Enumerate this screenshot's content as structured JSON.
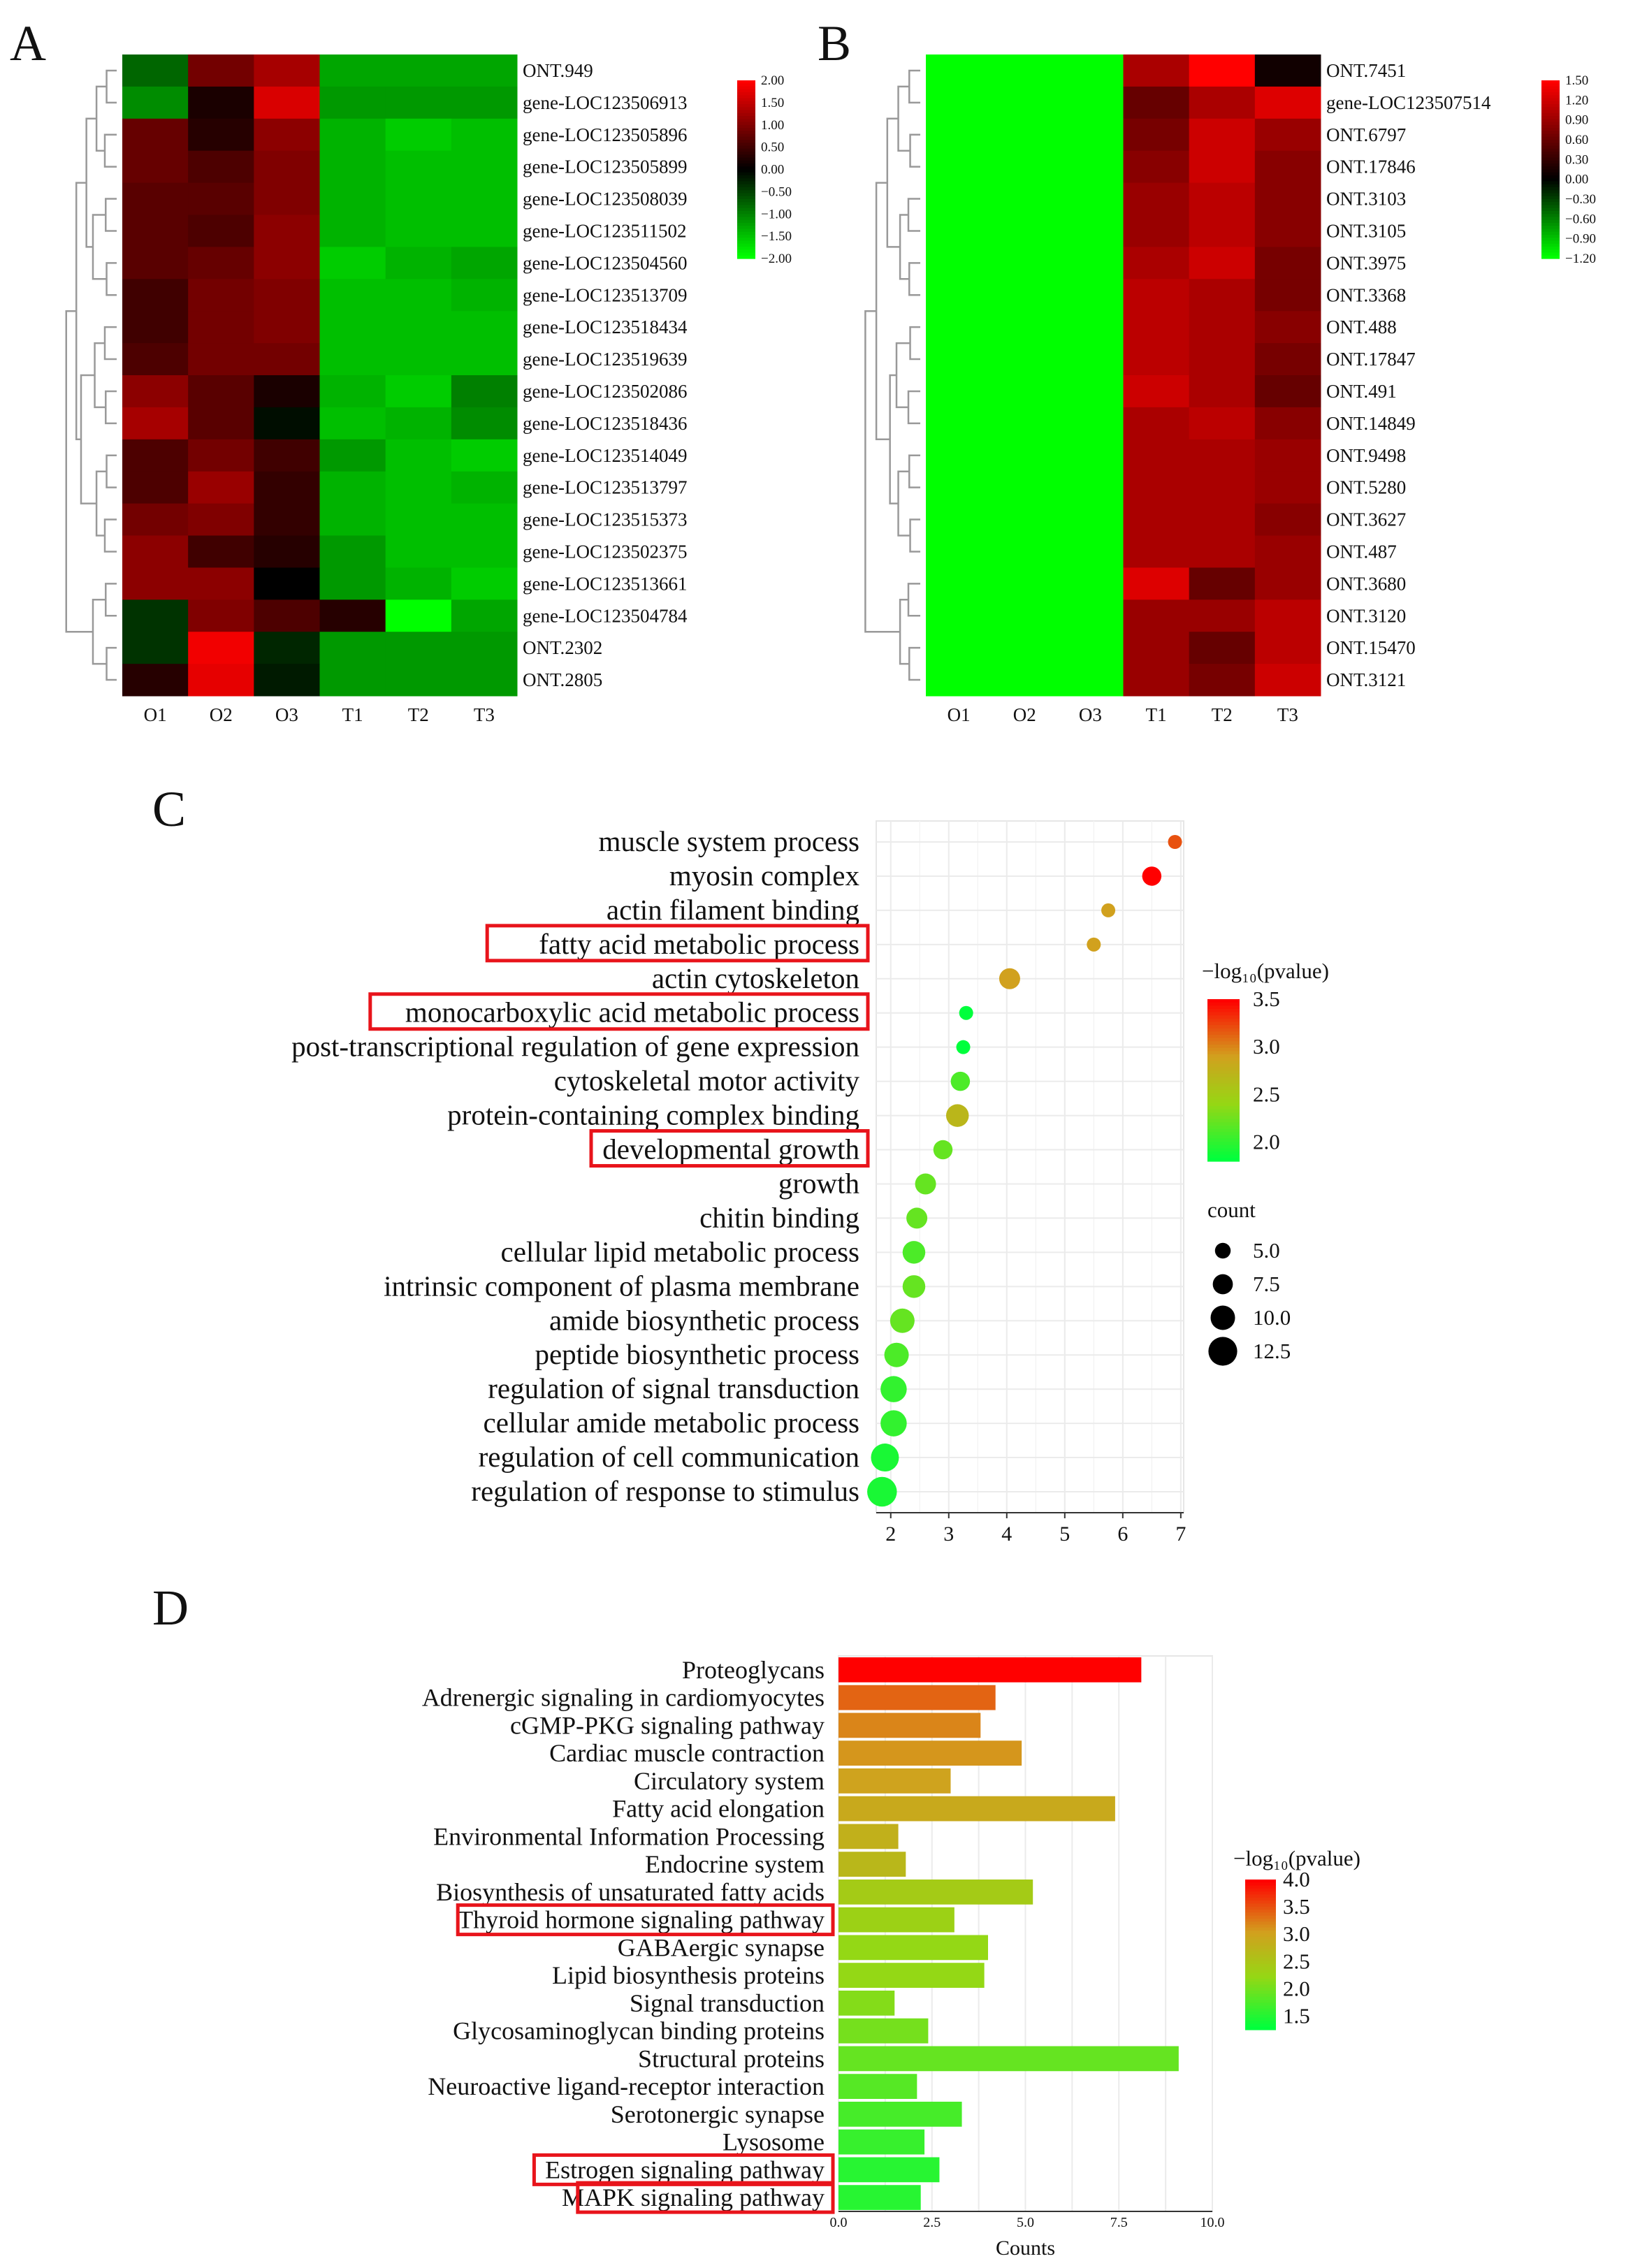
{
  "panel_labels": {
    "A": "A",
    "B": "B",
    "C": "C",
    "D": "D"
  },
  "chart_data": [
    {
      "panel": "A",
      "type": "heatmap",
      "columns": [
        "O1",
        "O2",
        "O3",
        "T1",
        "T2",
        "T3"
      ],
      "rows": [
        "ONT.949",
        "gene-LOC123506913",
        "gene-LOC123505896",
        "gene-LOC123505899",
        "gene-LOC123508039",
        "gene-LOC123511502",
        "gene-LOC123504560",
        "gene-LOC123513709",
        "gene-LOC123518434",
        "gene-LOC123519639",
        "gene-LOC123502086",
        "gene-LOC123518436",
        "gene-LOC123514049",
        "gene-LOC123513797",
        "gene-LOC123515373",
        "gene-LOC123502375",
        "gene-LOC123513661",
        "gene-LOC123504784",
        "ONT.2302",
        "ONT.2805"
      ],
      "values": [
        [
          -0.8,
          0.9,
          1.3,
          -1.3,
          -1.3,
          -1.3
        ],
        [
          -1.1,
          0.2,
          1.7,
          -1.2,
          -1.2,
          -1.2
        ],
        [
          0.8,
          0.3,
          1.1,
          -1.4,
          -1.6,
          -1.5
        ],
        [
          0.8,
          0.6,
          1.0,
          -1.4,
          -1.5,
          -1.5
        ],
        [
          0.7,
          0.7,
          1.0,
          -1.4,
          -1.5,
          -1.5
        ],
        [
          0.7,
          0.6,
          1.1,
          -1.4,
          -1.5,
          -1.5
        ],
        [
          0.7,
          0.8,
          1.1,
          -1.6,
          -1.4,
          -1.3
        ],
        [
          0.5,
          0.9,
          1.0,
          -1.5,
          -1.5,
          -1.4
        ],
        [
          0.5,
          0.9,
          1.0,
          -1.5,
          -1.5,
          -1.5
        ],
        [
          0.6,
          0.9,
          0.9,
          -1.5,
          -1.5,
          -1.5
        ],
        [
          1.1,
          0.7,
          0.2,
          -1.4,
          -1.6,
          -1.0
        ],
        [
          1.3,
          0.7,
          -0.1,
          -1.5,
          -1.4,
          -1.1
        ],
        [
          0.6,
          0.9,
          0.5,
          -1.2,
          -1.5,
          -1.6
        ],
        [
          0.6,
          1.2,
          0.4,
          -1.4,
          -1.5,
          -1.4
        ],
        [
          0.9,
          1.0,
          0.4,
          -1.4,
          -1.5,
          -1.5
        ],
        [
          1.1,
          0.5,
          0.3,
          -1.2,
          -1.5,
          -1.5
        ],
        [
          1.1,
          1.1,
          0.0,
          -1.2,
          -1.4,
          -1.6
        ],
        [
          -0.4,
          1.0,
          0.6,
          0.3,
          -2.0,
          -1.3
        ],
        [
          -0.4,
          1.9,
          -0.3,
          -1.2,
          -1.2,
          -1.2
        ],
        [
          0.3,
          1.8,
          -0.2,
          -1.2,
          -1.2,
          -1.2
        ]
      ],
      "colorbar": {
        "min": -2.0,
        "max": 2.0,
        "ticks": [
          "2.00",
          "1.50",
          "1.00",
          "0.50",
          "0.00",
          "−0.50",
          "−1.00",
          "−1.50",
          "−2.00"
        ],
        "low": "#00ff00",
        "mid": "#000000",
        "high": "#ff0000"
      }
    },
    {
      "panel": "B",
      "type": "heatmap",
      "columns": [
        "O1",
        "O2",
        "O3",
        "T1",
        "T2",
        "T3"
      ],
      "rows": [
        "ONT.7451",
        "gene-LOC123507514",
        "ONT.6797",
        "ONT.17846",
        "ONT.3103",
        "ONT.3105",
        "ONT.3975",
        "ONT.3368",
        "ONT.488",
        "ONT.17847",
        "ONT.491",
        "ONT.14849",
        "ONT.9498",
        "ONT.5280",
        "ONT.3627",
        "ONT.487",
        "ONT.3680",
        "ONT.3120",
        "ONT.15470",
        "ONT.3121"
      ],
      "values": [
        [
          -1.2,
          -1.2,
          -1.2,
          1.0,
          1.5,
          0.1
        ],
        [
          -1.2,
          -1.2,
          -1.2,
          0.6,
          1.0,
          1.3
        ],
        [
          -1.2,
          -1.2,
          -1.2,
          0.7,
          1.2,
          0.9
        ],
        [
          -1.2,
          -1.2,
          -1.2,
          0.8,
          1.2,
          0.8
        ],
        [
          -1.2,
          -1.2,
          -1.2,
          0.9,
          1.1,
          0.8
        ],
        [
          -1.2,
          -1.2,
          -1.2,
          0.9,
          1.1,
          0.8
        ],
        [
          -1.2,
          -1.2,
          -1.2,
          1.0,
          1.2,
          0.7
        ],
        [
          -1.2,
          -1.2,
          -1.2,
          1.1,
          1.0,
          0.7
        ],
        [
          -1.2,
          -1.2,
          -1.2,
          1.1,
          1.0,
          0.8
        ],
        [
          -1.2,
          -1.2,
          -1.2,
          1.1,
          1.0,
          0.7
        ],
        [
          -1.2,
          -1.2,
          -1.2,
          1.2,
          1.0,
          0.6
        ],
        [
          -1.2,
          -1.2,
          -1.2,
          1.0,
          1.1,
          0.8
        ],
        [
          -1.2,
          -1.2,
          -1.2,
          1.0,
          1.0,
          0.9
        ],
        [
          -1.2,
          -1.2,
          -1.2,
          1.0,
          1.0,
          0.9
        ],
        [
          -1.2,
          -1.2,
          -1.2,
          1.0,
          1.0,
          0.8
        ],
        [
          -1.2,
          -1.2,
          -1.2,
          1.0,
          1.0,
          0.9
        ],
        [
          -1.2,
          -1.2,
          -1.2,
          1.3,
          0.6,
          0.9
        ],
        [
          -1.2,
          -1.2,
          -1.2,
          0.9,
          0.9,
          1.1
        ],
        [
          -1.2,
          -1.2,
          -1.2,
          0.9,
          0.6,
          1.1
        ],
        [
          -1.2,
          -1.2,
          -1.2,
          0.9,
          0.7,
          1.2
        ]
      ],
      "colorbar": {
        "min": -1.2,
        "max": 1.5,
        "ticks": [
          "1.50",
          "1.20",
          "0.90",
          "0.60",
          "0.30",
          "0.00",
          "−0.30",
          "−0.60",
          "−0.90",
          "−1.20"
        ],
        "low": "#00ff00",
        "mid": "#000000",
        "high": "#ff0000"
      }
    },
    {
      "panel": "C",
      "type": "scatter",
      "categories": [
        "muscle system process",
        "myosin complex",
        "actin filament binding",
        "fatty acid metabolic process",
        "actin cytoskeleton",
        "monocarboxylic acid metabolic process",
        "post-transcriptional regulation of gene expression",
        "cytoskeletal motor activity",
        "protein-containing complex binding",
        "developmental growth",
        "growth",
        "chitin binding",
        "cellular lipid metabolic process",
        "intrinsic component of plasma membrane",
        "amide biosynthetic process",
        "peptide biosynthetic process",
        "regulation of signal transduction",
        "cellular amide metabolic process",
        "regulation of cell communication",
        "regulation of response to stimulus"
      ],
      "x": [
        6.9,
        6.5,
        5.75,
        5.5,
        4.05,
        3.3,
        3.25,
        3.2,
        3.15,
        2.9,
        2.6,
        2.45,
        2.4,
        2.4,
        2.2,
        2.1,
        2.05,
        2.05,
        1.9,
        1.85
      ],
      "neg_log10_p": [
        3.2,
        3.5,
        2.9,
        2.9,
        2.9,
        1.8,
        1.8,
        2.1,
        2.7,
        2.2,
        2.2,
        2.2,
        2.1,
        2.2,
        2.2,
        2.1,
        2.0,
        2.0,
        1.9,
        1.9
      ],
      "count": [
        4,
        7,
        4,
        4,
        8,
        4,
        4,
        7,
        9,
        7,
        8,
        8,
        9,
        9,
        10,
        10,
        11,
        11,
        12,
        13
      ],
      "highlighted": [
        "fatty acid metabolic process",
        "monocarboxylic acid metabolic process",
        "developmental growth"
      ],
      "x_ticks": [
        2,
        3,
        4,
        5,
        6,
        7
      ],
      "xlim": [
        1.75,
        7.05
      ],
      "color_legend": {
        "title": "−log₁₀(pvalue)",
        "ticks": [
          3.5,
          3.0,
          2.5,
          2.0
        ],
        "min": 1.8,
        "max": 3.5
      },
      "size_legend": {
        "title": "count",
        "ticks": [
          "5.0",
          "7.5",
          "10.0",
          "12.5"
        ],
        "values": [
          5,
          7.5,
          10,
          12.5
        ]
      }
    },
    {
      "panel": "D",
      "type": "bar",
      "orientation": "horizontal",
      "categories": [
        "Proteoglycans",
        "Adrenergic signaling in cardiomyocytes",
        "cGMP-PKG signaling pathway",
        "Cardiac muscle contraction",
        "Circulatory system",
        "Fatty acid elongation",
        "Environmental Information Processing",
        "Endocrine system",
        "Biosynthesis of unsaturated fatty acids",
        "Thyroid hormone signaling pathway",
        "GABAergic synapse",
        "Lipid biosynthesis proteins",
        "Signal transduction",
        "Glycosaminoglycan binding proteins",
        "Structural proteins",
        "Neuroactive ligand-receptor interaction",
        "Serotonergic synapse",
        "Lysosome",
        "Estrogen signaling pathway",
        "MAPK signaling pathway"
      ],
      "values": [
        8.1,
        4.2,
        3.8,
        4.9,
        3.0,
        7.4,
        1.6,
        1.8,
        5.2,
        3.1,
        4.0,
        3.9,
        1.5,
        2.4,
        9.1,
        2.1,
        3.3,
        2.3,
        2.7,
        2.2
      ],
      "neg_log10_p": [
        4.0,
        3.4,
        3.2,
        3.1,
        3.0,
        2.9,
        2.8,
        2.7,
        2.4,
        2.3,
        2.2,
        2.2,
        2.1,
        2.0,
        1.9,
        1.8,
        1.7,
        1.6,
        1.5,
        1.5
      ],
      "highlighted": [
        "Thyroid hormone signaling pathway",
        "Estrogen signaling pathway",
        "MAPK signaling pathway"
      ],
      "x_ticks": [
        "0.0",
        "2.5",
        "5.0",
        "7.5",
        "10.0"
      ],
      "xlim": [
        0,
        10
      ],
      "xlabel": "Counts",
      "color_legend": {
        "title": "−log₁₀(pvalue)",
        "ticks": [
          "4.0",
          "3.5",
          "3.0",
          "2.5",
          "2.0",
          "1.5"
        ],
        "min": 1.25,
        "max": 4.0
      }
    }
  ]
}
